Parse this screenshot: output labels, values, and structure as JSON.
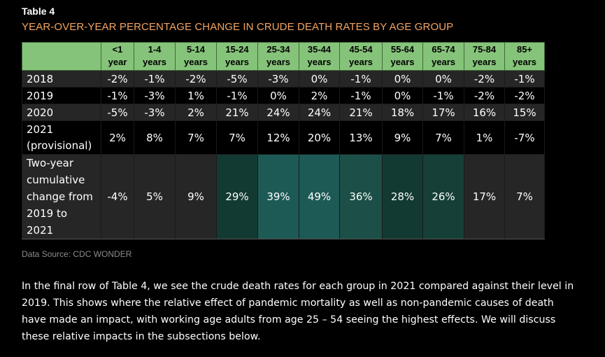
{
  "table_label": "Table 4",
  "title": "YEAR-OVER-YEAR PERCENTAGE CHANGE IN CRUDE DEATH RATES BY AGE GROUP",
  "columns": [
    [
      "<1",
      "year"
    ],
    [
      "1-4",
      "years"
    ],
    [
      "5-14",
      "years"
    ],
    [
      "15-24",
      "years"
    ],
    [
      "25-34",
      "years"
    ],
    [
      "35-44",
      "years"
    ],
    [
      "45-54",
      "years"
    ],
    [
      "55-64",
      "years"
    ],
    [
      "65-74",
      "years"
    ],
    [
      "75-84",
      "years"
    ],
    [
      "85+",
      "years"
    ]
  ],
  "rows": [
    {
      "label": [
        "2018"
      ],
      "values": [
        "-2%",
        "-1%",
        "-2%",
        "-5%",
        "-3%",
        "0%",
        "-1%",
        "0%",
        "0%",
        "-2%",
        "-1%"
      ]
    },
    {
      "label": [
        "2019"
      ],
      "values": [
        "-1%",
        "-3%",
        "1%",
        "-1%",
        "0%",
        "2%",
        "-1%",
        "0%",
        "-1%",
        "-2%",
        "-2%"
      ]
    },
    {
      "label": [
        "2020"
      ],
      "values": [
        "-5%",
        "-3%",
        "2%",
        "21%",
        "24%",
        "24%",
        "21%",
        "18%",
        "17%",
        "16%",
        "15%"
      ]
    },
    {
      "label": [
        "2021",
        "(provisional)"
      ],
      "values": [
        "2%",
        "8%",
        "7%",
        "7%",
        "12%",
        "20%",
        "13%",
        "9%",
        "7%",
        "1%",
        "-7%"
      ]
    },
    {
      "label": [
        "Two-year",
        "cumulative",
        "change from",
        "2019 to",
        "2021"
      ],
      "values": [
        "-4%",
        "5%",
        "9%",
        "29%",
        "39%",
        "49%",
        "36%",
        "28%",
        "26%",
        "17%",
        "7%"
      ]
    }
  ],
  "highlight_colors": {
    "low": "#123a32",
    "mid": "#163f38",
    "high": "#1b4f47",
    "peak": "#1d5a55",
    "header": "#86c37a",
    "title": "#f4a460"
  },
  "source": "Data Source: CDC WONDER",
  "paragraph": "In the final row of Table 4, we see the crude death rates for each group in 2021 compared against their level in 2019.  This shows where the relative effect of pandemic mortality as well as non-pandemic causes of death have made an impact, with working age adults from age 25 – 54 seeing the highest effects. We will discuss these relative impacts in the subsections below."
}
